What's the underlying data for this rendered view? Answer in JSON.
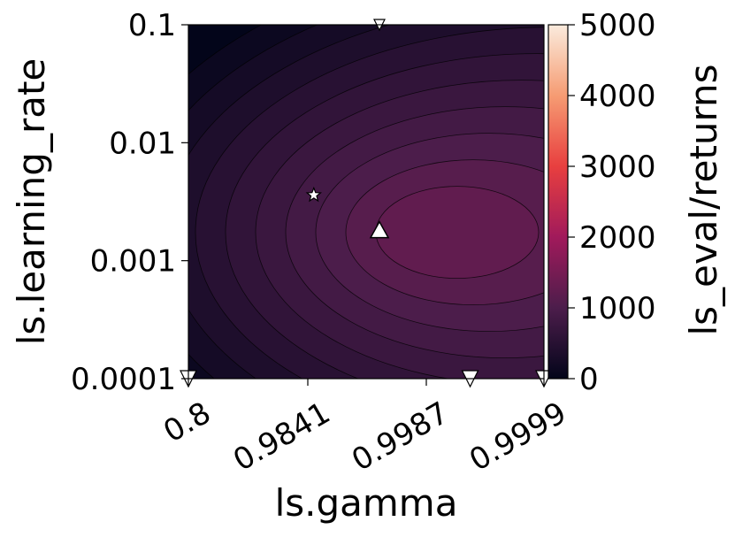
{
  "chart_data": {
    "type": "contour",
    "title": "",
    "xlabel": "ls.gamma",
    "ylabel": "ls.learning_rate",
    "x_scale": "log(1 - gamma)",
    "y_scale": "log",
    "x_ticks": [
      "0.8",
      "0.9841",
      "0.9987",
      "0.9999"
    ],
    "x_tick_values": [
      0.8,
      0.9841,
      0.9987,
      0.9999
    ],
    "y_ticks": [
      "0.0001",
      "0.001",
      "0.01",
      "0.1"
    ],
    "y_tick_values": [
      0.0001,
      0.001,
      0.01,
      0.1
    ],
    "xlim": [
      0.8,
      0.9999
    ],
    "ylim": [
      0.0001,
      0.1
    ],
    "colorbar": {
      "label": "ls_eval/returns",
      "ticks": [
        "0",
        "1000",
        "2000",
        "3000",
        "4000",
        "5000"
      ],
      "range": [
        0,
        5000
      ],
      "colormap": "rocket",
      "colors": [
        "#03051a",
        "#4c1d4b",
        "#a11a5b",
        "#e83f3f",
        "#f69c73",
        "#faebdd"
      ]
    },
    "contour_peak": {
      "gamma": 0.9965,
      "learning_rate": 0.0018,
      "value": 1250
    },
    "markers": [
      {
        "type": "star",
        "gamma": 0.986,
        "learning_rate": 0.0036
      },
      {
        "type": "triangle-up",
        "gamma": 0.9965,
        "learning_rate": 0.0018
      },
      {
        "type": "triangle-down",
        "gamma": 0.9965,
        "learning_rate": 0.1
      },
      {
        "type": "triangle-down",
        "gamma": 0.9995,
        "learning_rate": 0.0001
      },
      {
        "type": "triangle-down",
        "gamma": 0.8,
        "learning_rate": 0.0001
      },
      {
        "type": "triangle-down",
        "gamma": 0.9999,
        "learning_rate": 0.0001
      }
    ],
    "grid": false,
    "legend": "none"
  }
}
